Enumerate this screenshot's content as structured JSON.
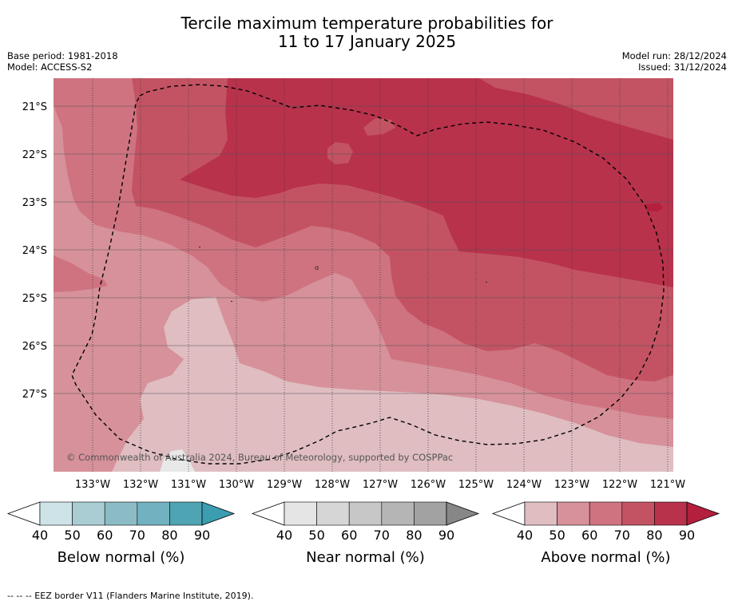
{
  "title_line1": "Tercile maximum temperature probabilities for",
  "title_line2": "11 to 17 January 2025",
  "base_period": "Base period: 1981-2018",
  "model": "Model: ACCESS-S2",
  "model_run": "Model run: 28/12/2024",
  "issued": "Issued: 31/12/2024",
  "lat_labels": [
    "21°S",
    "22°S",
    "23°S",
    "24°S",
    "25°S",
    "26°S",
    "27°S"
  ],
  "lon_labels": [
    "133°W",
    "132°W",
    "131°W",
    "130°W",
    "129°W",
    "128°W",
    "127°W",
    "126°W",
    "125°W",
    "124°W",
    "123°W",
    "122°W",
    "121°W"
  ],
  "copyright": "© Commonwealth of Australia 2024, Bureau of Meteorology, supported by COSPPac",
  "legends": [
    {
      "name": "below",
      "label": "Below normal (%)",
      "ticks": [
        "40",
        "50",
        "60",
        "70",
        "80",
        "90"
      ],
      "colors": [
        "#cde3e8",
        "#a9cdd3",
        "#8bbcc6",
        "#72b1bf",
        "#4ea4b3"
      ],
      "extend": "#3a9db0"
    },
    {
      "name": "near",
      "label": "Near normal (%)",
      "ticks": [
        "40",
        "50",
        "60",
        "70",
        "80",
        "90"
      ],
      "colors": [
        "#e5e5e5",
        "#d6d6d6",
        "#c7c7c7",
        "#b5b5b5",
        "#a2a2a2"
      ],
      "extend": "#878787"
    },
    {
      "name": "above",
      "label": "Above normal (%)",
      "ticks": [
        "40",
        "50",
        "60",
        "70",
        "80",
        "90"
      ],
      "colors": [
        "#dfbdc1",
        "#d6919a",
        "#cf7380",
        "#c35363",
        "#b8324c"
      ],
      "extend": "#b31f3c"
    }
  ],
  "footnote": "--  --  -- EEZ border V11 (Flanders Marine Institute, 2019).",
  "colors": {
    "above_50": "#dfbdc1",
    "above_60": "#d6919a",
    "above_70": "#cf7380",
    "above_80": "#c35363",
    "above_90": "#b8324c"
  }
}
